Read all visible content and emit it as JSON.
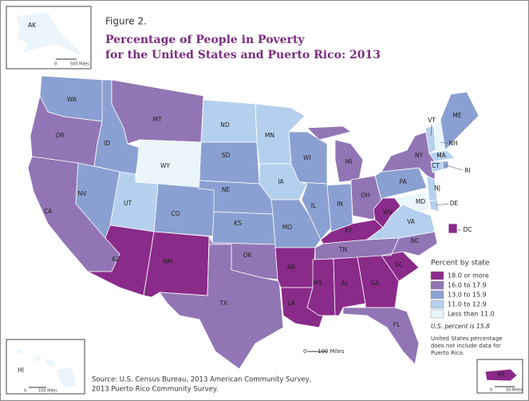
{
  "figure_label": "Figure 2.",
  "title": [
    "Percentage of People in Poverty",
    "for the United States and Puerto Rico: 2013"
  ],
  "legend": {
    "title": "Percent by state",
    "items": [
      {
        "label": "18.0 or more",
        "color": "#8a2a89"
      },
      {
        "label": "16.0 to 17.9",
        "color": "#9275b5"
      },
      {
        "label": "13.0 to 15.9",
        "color": "#8aa0d2"
      },
      {
        "label": "11.0 to 12.9",
        "color": "#b5d0ee"
      },
      {
        "label": "Less than 11.0",
        "color": "#eaf5fc"
      }
    ]
  },
  "us_percent_note": "U.S. percent is 15.8",
  "exclusion_note": [
    "United States percentage",
    "does not include data for",
    "Puerto Rico."
  ],
  "source": [
    "Source: U.S. Census Bureau, 2013 American Community Survey,",
    "2013 Puerto Rico Community Survey."
  ],
  "scales": {
    "alaska": {
      "zero": "0",
      "label": "500 Miles"
    },
    "main": {
      "zero": "0",
      "label": "100 Miles"
    },
    "hawaii": {
      "zero": "0",
      "label": "100 Miles"
    },
    "puerto_rico": {
      "zero": "0",
      "label": "50 Miles"
    }
  },
  "states": [
    {
      "label": "WA",
      "category": 2
    },
    {
      "label": "OR",
      "category": 1
    },
    {
      "label": "CA",
      "category": 1
    },
    {
      "label": "NV",
      "category": 2
    },
    {
      "label": "ID",
      "category": 2
    },
    {
      "label": "MT",
      "category": 1
    },
    {
      "label": "WY",
      "category": 4
    },
    {
      "label": "UT",
      "category": 3
    },
    {
      "label": "CO",
      "category": 2
    },
    {
      "label": "AZ",
      "category": 0
    },
    {
      "label": "NM",
      "category": 0
    },
    {
      "label": "ND",
      "category": 3
    },
    {
      "label": "SD",
      "category": 2
    },
    {
      "label": "NE",
      "category": 2
    },
    {
      "label": "KS",
      "category": 2
    },
    {
      "label": "OK",
      "category": 1
    },
    {
      "label": "TX",
      "category": 1
    },
    {
      "label": "MN",
      "category": 3
    },
    {
      "label": "IA",
      "category": 3
    },
    {
      "label": "MO",
      "category": 2
    },
    {
      "label": "AR",
      "category": 0
    },
    {
      "label": "LA",
      "category": 0
    },
    {
      "label": "WI",
      "category": 2
    },
    {
      "label": "IL",
      "category": 2
    },
    {
      "label": "MI",
      "category": 1
    },
    {
      "label": "IN",
      "category": 2
    },
    {
      "label": "OH",
      "category": 1
    },
    {
      "label": "KY",
      "category": 0
    },
    {
      "label": "TN",
      "category": 1
    },
    {
      "label": "MS",
      "category": 0
    },
    {
      "label": "AL",
      "category": 0
    },
    {
      "label": "GA",
      "category": 0
    },
    {
      "label": "FL",
      "category": 1
    },
    {
      "label": "SC",
      "category": 0
    },
    {
      "label": "NC",
      "category": 1
    },
    {
      "label": "VA",
      "category": 3
    },
    {
      "label": "WV",
      "category": 0
    },
    {
      "label": "PA",
      "category": 2
    },
    {
      "label": "NY",
      "category": 1
    },
    {
      "label": "VT",
      "category": 3
    },
    {
      "label": "NH",
      "category": 4
    },
    {
      "label": "ME",
      "category": 2
    },
    {
      "label": "MA",
      "category": 3
    },
    {
      "label": "CT",
      "category": 3
    },
    {
      "label": "RI",
      "category": 2
    },
    {
      "label": "NJ",
      "category": 3
    },
    {
      "label": "DE",
      "category": 3
    },
    {
      "label": "MD",
      "category": 4
    },
    {
      "label": "DC",
      "category": 0
    },
    {
      "label": "AK",
      "category": 4
    },
    {
      "label": "HI",
      "category": 4
    },
    {
      "label": "PR",
      "category": 0
    }
  ]
}
